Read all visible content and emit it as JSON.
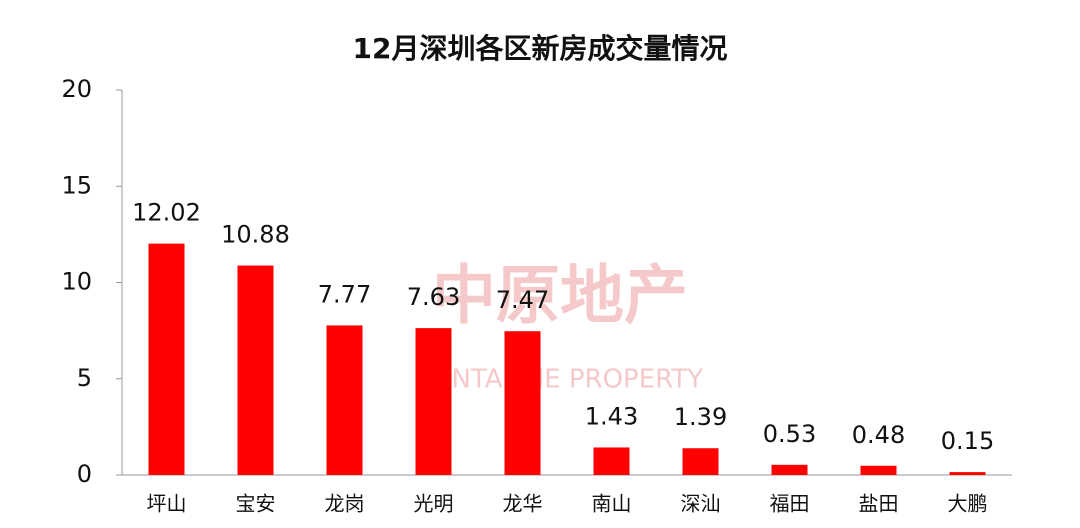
{
  "chart_data": {
    "type": "bar",
    "title": "12月深圳各区新房成交量情况",
    "categories": [
      "坪山",
      "宝安",
      "龙岗",
      "光明",
      "龙华",
      "南山",
      "深汕",
      "福田",
      "盐田",
      "大鹏"
    ],
    "values": [
      12.02,
      10.88,
      7.77,
      7.63,
      7.47,
      1.43,
      1.39,
      0.53,
      0.48,
      0.15
    ],
    "color": "#ff0000",
    "ylim": [
      0,
      20
    ],
    "yticks": [
      0,
      5,
      10,
      15,
      20
    ],
    "grid": false,
    "watermark": "中原地产",
    "watermark_sub": "CENTALINE PROPERTY"
  }
}
